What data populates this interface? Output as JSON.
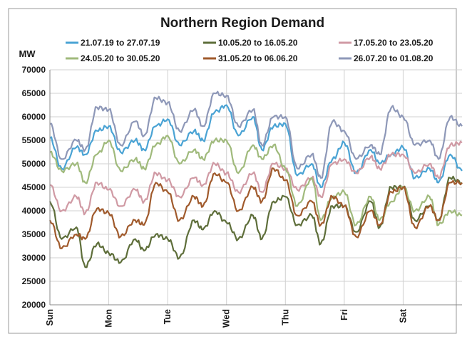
{
  "chart_data": {
    "type": "line",
    "title": "Northern Region Demand",
    "ylabel": "MW",
    "xlabel": "",
    "ylim": [
      20000,
      70000
    ],
    "xlim": [
      0,
      7
    ],
    "yticks": [
      20000,
      25000,
      30000,
      35000,
      40000,
      45000,
      50000,
      55000,
      60000,
      65000,
      70000
    ],
    "categories": [
      "Sun",
      "Mon",
      "Tue",
      "Wed",
      "Thu",
      "Fri",
      "Sat"
    ],
    "grid": true,
    "legend_position": "top",
    "series": [
      {
        "name": "21.07.19 to 27.07.19",
        "color": "#4aa3d4",
        "x": [
          0,
          0.2,
          0.45,
          0.6,
          0.8,
          1.0,
          1.2,
          1.45,
          1.6,
          1.8,
          2.0,
          2.2,
          2.45,
          2.6,
          2.8,
          3.0,
          3.2,
          3.45,
          3.6,
          3.8,
          4.0,
          4.2,
          4.45,
          4.6,
          4.8,
          5.0,
          5.2,
          5.45,
          5.6,
          5.8,
          6.0,
          6.2,
          6.45,
          6.6,
          6.8,
          7.0
        ],
        "y": [
          55500,
          49000,
          53500,
          52000,
          57000,
          58000,
          52500,
          55000,
          53000,
          58000,
          59500,
          54000,
          57000,
          55000,
          61000,
          62500,
          56000,
          60000,
          53000,
          58000,
          58500,
          47500,
          50000,
          45000,
          51000,
          54500,
          48000,
          53000,
          50000,
          52000,
          53500,
          47000,
          49000,
          46000,
          52000,
          48500
        ]
      },
      {
        "name": "10.05.20 to 16.05.20",
        "color": "#5e6e3a",
        "x": [
          0,
          0.2,
          0.45,
          0.6,
          0.8,
          1.0,
          1.2,
          1.45,
          1.6,
          1.8,
          2.0,
          2.2,
          2.45,
          2.6,
          2.8,
          3.0,
          3.2,
          3.45,
          3.6,
          3.8,
          4.0,
          4.2,
          4.45,
          4.6,
          4.8,
          5.0,
          5.2,
          5.45,
          5.6,
          5.8,
          6.0,
          6.2,
          6.45,
          6.6,
          6.8,
          7.0
        ],
        "y": [
          42000,
          34000,
          36500,
          28000,
          33000,
          31000,
          29000,
          34000,
          31500,
          35000,
          34000,
          30000,
          38000,
          36000,
          40000,
          37500,
          34000,
          39000,
          34000,
          42000,
          43000,
          37000,
          39000,
          33000,
          41000,
          41000,
          35500,
          42000,
          36500,
          45000,
          45000,
          38000,
          41000,
          38000,
          47000,
          46000
        ]
      },
      {
        "name": "17.05.20 to 23.05.20",
        "color": "#d09aa4",
        "x": [
          0,
          0.2,
          0.45,
          0.6,
          0.8,
          1.0,
          1.2,
          1.45,
          1.6,
          1.8,
          2.0,
          2.2,
          2.45,
          2.6,
          2.8,
          3.0,
          3.2,
          3.45,
          3.6,
          3.8,
          4.0,
          4.2,
          4.45,
          4.6,
          4.8,
          5.0,
          5.2,
          5.45,
          5.6,
          5.8,
          6.0,
          6.2,
          6.45,
          6.6,
          6.8,
          7.0
        ],
        "y": [
          45500,
          40000,
          43000,
          39500,
          46000,
          44500,
          41000,
          44500,
          42000,
          48000,
          46500,
          43000,
          47000,
          45500,
          50000,
          48000,
          44000,
          48000,
          44000,
          50000,
          49000,
          44500,
          47000,
          43000,
          50000,
          51000,
          48000,
          51500,
          49000,
          52000,
          52000,
          48000,
          50000,
          47000,
          54000,
          54500
        ]
      },
      {
        "name": "24.05.20 to 30.05.20",
        "color": "#a0ba7c",
        "x": [
          0,
          0.2,
          0.45,
          0.6,
          0.8,
          1.0,
          1.2,
          1.45,
          1.6,
          1.8,
          2.0,
          2.2,
          2.45,
          2.6,
          2.8,
          3.0,
          3.2,
          3.45,
          3.6,
          3.8,
          4.0,
          4.2,
          4.45,
          4.6,
          4.8,
          5.0,
          5.2,
          5.45,
          5.6,
          5.8,
          6.0,
          6.2,
          6.45,
          6.6,
          6.8,
          7.0
        ],
        "y": [
          52500,
          48500,
          50000,
          46000,
          52000,
          55000,
          48500,
          51000,
          49000,
          54000,
          56000,
          50000,
          53000,
          51000,
          55000,
          55000,
          48000,
          54000,
          51000,
          54000,
          49000,
          41000,
          47000,
          38000,
          43000,
          44000,
          37000,
          43000,
          38000,
          42000,
          45000,
          40000,
          43000,
          37000,
          40000,
          39000
        ]
      },
      {
        "name": "31.05.20 to 06.06.20",
        "color": "#a05a2c",
        "x": [
          0,
          0.2,
          0.45,
          0.6,
          0.8,
          1.0,
          1.2,
          1.45,
          1.6,
          1.8,
          2.0,
          2.2,
          2.45,
          2.6,
          2.8,
          3.0,
          3.2,
          3.45,
          3.6,
          3.8,
          4.0,
          4.2,
          4.45,
          4.6,
          4.8,
          5.0,
          5.2,
          5.45,
          5.6,
          5.8,
          6.0,
          6.2,
          6.45,
          6.6,
          6.8,
          7.0
        ],
        "y": [
          38000,
          32000,
          35000,
          34000,
          40500,
          39500,
          34500,
          38000,
          37000,
          46000,
          44000,
          38000,
          43000,
          41000,
          48000,
          46000,
          40000,
          45000,
          42000,
          49000,
          46500,
          39000,
          42000,
          37000,
          43000,
          41000,
          34500,
          40000,
          37000,
          44000,
          45000,
          36500,
          41000,
          38000,
          46000,
          46000
        ]
      },
      {
        "name": "26.07.20 to 01.08.20",
        "color": "#8e98b8",
        "x": [
          0,
          0.2,
          0.45,
          0.6,
          0.8,
          1.0,
          1.2,
          1.45,
          1.6,
          1.8,
          2.0,
          2.2,
          2.45,
          2.6,
          2.8,
          3.0,
          3.2,
          3.45,
          3.6,
          3.8,
          4.0,
          4.2,
          4.45,
          4.6,
          4.8,
          5.0,
          5.2,
          5.45,
          5.6,
          5.8,
          6.0,
          6.2,
          6.45,
          6.6,
          6.8,
          7.0
        ],
        "y": [
          58500,
          51000,
          55000,
          53000,
          62000,
          61500,
          54000,
          59000,
          56000,
          64000,
          63000,
          57000,
          61500,
          58000,
          65000,
          64500,
          58000,
          61500,
          54000,
          60000,
          60000,
          49000,
          52000,
          47000,
          59000,
          57000,
          51000,
          54000,
          52000,
          62000,
          60000,
          54000,
          55000,
          51000,
          60000,
          58000
        ]
      }
    ]
  }
}
